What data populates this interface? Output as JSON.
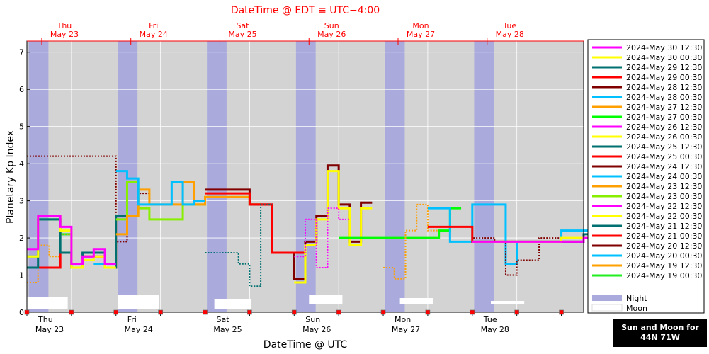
{
  "chart_data": {
    "type": "line",
    "title": "DateTime @ EDT ≡ UTC−4:00",
    "xlabel": "DateTime @ UTC",
    "ylabel": "Planetary Kp Index",
    "ylim": [
      0,
      7.3
    ],
    "xlim_days_utc": [
      "2024-05-23 00:00",
      "2024-05-29 06:00"
    ],
    "yticks": [
      "0",
      "1",
      "2",
      "3",
      "4",
      "5",
      "6",
      "7"
    ],
    "bottom_ticks": [
      {
        "day": "Thu",
        "date": "May 23"
      },
      {
        "day": "Fri",
        "date": "May 24"
      },
      {
        "day": "Sat",
        "date": "May 25"
      },
      {
        "day": "Sun",
        "date": "May 26"
      },
      {
        "day": "Mon",
        "date": "May 27"
      },
      {
        "day": "Tue",
        "date": "May 28"
      }
    ],
    "top_ticks": [
      {
        "day": "Thu",
        "date": "May 23"
      },
      {
        "day": "Fri",
        "date": "May 24"
      },
      {
        "day": "Sat",
        "date": "May 25"
      },
      {
        "day": "Sun",
        "date": "May 26"
      },
      {
        "day": "Mon",
        "date": "May 27"
      },
      {
        "day": "Tue",
        "date": "May 28"
      }
    ],
    "grid": true,
    "legend_position": "right",
    "night_intervals_hours": [
      [
        0.5,
        5.8
      ],
      [
        24.5,
        29.8
      ],
      [
        48.5,
        53.8
      ],
      [
        72.5,
        77.8
      ],
      [
        96.5,
        101.8
      ],
      [
        120.5,
        125.8
      ]
    ],
    "moon_intervals_hours": [
      [
        0,
        11
      ],
      [
        0.5,
        11.5
      ],
      [
        2.5,
        12.5
      ],
      [
        4,
        13
      ],
      [
        4.5,
        13.5
      ],
      [
        5,
        14
      ]
    ],
    "series": [
      {
        "name": "2024-May 30 12:30",
        "color": "#ff00ff",
        "style": "solid",
        "x": [
          120,
          132,
          144,
          150
        ],
        "y": [
          1.9,
          1.9,
          1.9,
          2.0
        ]
      },
      {
        "name": "2024-May 30 00:30",
        "color": "#ffff00",
        "style": "solid",
        "x": [
          120,
          132,
          144,
          150
        ],
        "y": [
          1.9,
          1.9,
          2.0,
          2.0
        ]
      },
      {
        "name": "2024-May 29 12:30",
        "color": "#007070",
        "style": "solid",
        "x": [
          120,
          132,
          144,
          150
        ],
        "y": [
          1.9,
          1.9,
          1.9,
          2.1
        ]
      },
      {
        "name": "2024-May 29 00:30",
        "color": "#ff0000",
        "style": "solid",
        "x": [
          108,
          114,
          120,
          132,
          150
        ],
        "y": [
          2.3,
          2.3,
          1.9,
          1.9,
          2.0
        ]
      },
      {
        "name": "2024-May 28 12:30",
        "color": "#800000",
        "style": "dotted",
        "x": [
          108,
          120,
          126,
          129,
          132,
          138,
          150
        ],
        "y": [
          2.3,
          2.0,
          1.9,
          1.0,
          1.4,
          2.0,
          2.0
        ]
      },
      {
        "name": "2024-May 28 00:30",
        "color": "#00c0ff",
        "style": "solid",
        "x": [
          108,
          111,
          114,
          117,
          120,
          129,
          132,
          144,
          150
        ],
        "y": [
          2.8,
          2.8,
          1.9,
          1.9,
          2.9,
          1.3,
          1.9,
          2.2,
          2.2
        ]
      },
      {
        "name": "2024-May 27 12:30",
        "color": "#ffa000",
        "style": "dotted",
        "x": [
          96,
          99,
          102,
          105,
          108
        ],
        "y": [
          1.2,
          0.9,
          2.2,
          2.9,
          2.2
        ]
      },
      {
        "name": "2024-May 27 00:30",
        "color": "#00ff00",
        "style": "solid",
        "x": [
          84,
          96,
          108,
          111,
          114
        ],
        "y": [
          2.0,
          2.0,
          2.0,
          2.2,
          2.8
        ]
      },
      {
        "name": "2024-May 26 12:30",
        "color": "#ff00ff",
        "style": "dotted",
        "x": [
          72,
          75,
          78,
          81,
          84
        ],
        "y": [
          1.5,
          2.5,
          1.2,
          2.8,
          2.5
        ]
      },
      {
        "name": "2024-May 26 00:30",
        "color": "#ffff00",
        "style": "solid",
        "x": [
          72,
          75,
          78,
          81,
          84,
          87,
          90
        ],
        "y": [
          0.8,
          1.8,
          2.5,
          3.8,
          2.8,
          1.8,
          2.8
        ]
      },
      {
        "name": "2024-May 25 12:30",
        "color": "#007070",
        "style": "dotted",
        "x": [
          48,
          54,
          57,
          60,
          63
        ],
        "y": [
          1.6,
          1.6,
          1.3,
          0.7,
          2.9
        ]
      },
      {
        "name": "2024-May 25 00:30",
        "color": "#ff0000",
        "style": "solid",
        "x": [
          48,
          54,
          60,
          66,
          72
        ],
        "y": [
          3.2,
          3.2,
          2.9,
          1.6,
          1.6
        ]
      },
      {
        "name": "2024-May 24 12:30",
        "color": "#800000",
        "style": "solid",
        "x": [
          48,
          54,
          60,
          66,
          72,
          75,
          78,
          81,
          84,
          87,
          90
        ],
        "y": [
          3.3,
          3.3,
          2.9,
          1.6,
          0.9,
          1.9,
          2.6,
          3.95,
          2.9,
          1.9,
          2.95
        ]
      },
      {
        "name": "2024-May 24 00:30",
        "color": "#00c0ff",
        "style": "solid",
        "x": [
          24,
          27,
          30,
          33,
          36,
          39,
          42,
          45
        ],
        "y": [
          3.8,
          3.6,
          2.9,
          2.9,
          2.9,
          3.5,
          2.9,
          3.0
        ]
      },
      {
        "name": "2024-May 23 12:30",
        "color": "#ffa000",
        "style": "solid",
        "x": [
          24,
          27,
          30,
          33,
          36,
          42,
          45,
          48,
          54,
          60
        ],
        "y": [
          2.1,
          2.6,
          3.3,
          2.9,
          2.9,
          3.5,
          2.9,
          3.1,
          3.1,
          2.9
        ]
      },
      {
        "name": "2024-May 23 00:30",
        "color": "#88ee00",
        "style": "solid",
        "x": [
          24,
          27,
          30,
          33,
          36,
          42,
          45,
          48,
          54,
          60
        ],
        "y": [
          2.5,
          3.5,
          2.8,
          2.5,
          2.5,
          2.9,
          2.9,
          3.1,
          3.1,
          2.9
        ]
      },
      {
        "name": "2024-May 22 12:30",
        "color": "#ff00ff",
        "style": "solid",
        "x": [
          0,
          3,
          9,
          12,
          15,
          18,
          21
        ],
        "y": [
          1.7,
          2.6,
          2.3,
          1.3,
          1.5,
          1.7,
          1.3
        ]
      },
      {
        "name": "2024-May 22 00:30",
        "color": "#ffff00",
        "style": "solid",
        "x": [
          0,
          3,
          9,
          12,
          15,
          18,
          21
        ],
        "y": [
          1.5,
          2.6,
          2.2,
          1.2,
          1.4,
          1.5,
          1.2
        ]
      },
      {
        "name": "2024-May 21 12:30",
        "color": "#007070",
        "style": "solid",
        "x": [
          0,
          3,
          9,
          12,
          15,
          18,
          21,
          24
        ],
        "y": [
          1.2,
          2.5,
          1.6,
          1.2,
          1.6,
          1.6,
          1.2,
          2.6
        ]
      },
      {
        "name": "2024-May 21 00:30",
        "color": "#ff0000",
        "style": "solid",
        "x": [
          0,
          9,
          12,
          15,
          18,
          21,
          24
        ],
        "y": [
          1.2,
          1.6,
          1.2,
          1.5,
          1.5,
          1.2,
          2.6
        ]
      },
      {
        "name": "2024-May 20 12:30",
        "color": "#800000",
        "style": "dotted",
        "x": [
          0,
          24,
          27,
          30
        ],
        "y": [
          4.2,
          1.9,
          2.6,
          3.2
        ]
      },
      {
        "name": "2024-May 20 00:30",
        "color": "#00c0ff",
        "style": "solid",
        "x": [
          18,
          21
        ],
        "y": [
          1.3,
          1.3
        ]
      },
      {
        "name": "2024-May 19 12:30",
        "color": "#ffa000",
        "style": "dotted",
        "x": [
          0,
          3,
          6,
          9
        ],
        "y": [
          0.8,
          1.8,
          1.5,
          2.1
        ]
      },
      {
        "name": "2024-May 19 00:30",
        "color": "#22ee22",
        "style": "solid",
        "x": [
          0,
          3,
          9,
          12
        ],
        "y": [
          1.5,
          2.5,
          2.1,
          1.2
        ]
      }
    ],
    "legend_extra": [
      {
        "label": "Night",
        "color": "#aaaadd"
      },
      {
        "label": "Moon",
        "color": "#ffffff"
      }
    ]
  },
  "info_badge": {
    "line1": "Sun and Moon for",
    "line2": "44N 71W"
  },
  "colors": {
    "plot_bg": "#d3d3d3",
    "night": "#aaaadd",
    "moon": "#ffffff",
    "title": "#ff0000",
    "marker": "#ff0000"
  }
}
